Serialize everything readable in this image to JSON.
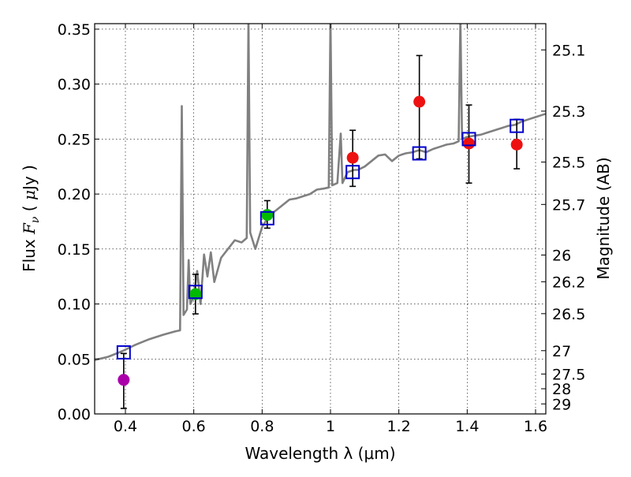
{
  "chart_data": {
    "type": "scatter",
    "xlabel": "Wavelength  λ (μm)",
    "ylabel": "Flux  F_ν  ( μJy )",
    "y2label": "Magnitude (AB)",
    "xlim": [
      0.31,
      1.63
    ],
    "ylim": [
      0.0,
      0.355
    ],
    "grid": true,
    "x_ticks": [
      0.4,
      0.6,
      0.8,
      1.0,
      1.2,
      1.4,
      1.6
    ],
    "x_tick_labels": [
      "0.4",
      "0.6",
      "0.8",
      "1",
      "1.2",
      "1.4",
      "1.6"
    ],
    "y_ticks": [
      0.0,
      0.05,
      0.1,
      0.15,
      0.2,
      0.25,
      0.3,
      0.35
    ],
    "y_tick_labels": [
      "0.00",
      "0.05",
      "0.10",
      "0.15",
      "0.20",
      "0.25",
      "0.30",
      "0.35"
    ],
    "mag_ticks": [
      "25.1",
      "25.3",
      "25.5",
      "25.7",
      "26",
      "26.2",
      "26.5",
      "27",
      "27.5",
      "28",
      "29"
    ],
    "colors": {
      "spectrum": "#808080",
      "model": "#0000cc",
      "violet": "#aa00aa",
      "green": "#00bb00",
      "red": "#ee1111"
    },
    "spectrum": [
      [
        0.31,
        0.049
      ],
      [
        0.35,
        0.052
      ],
      [
        0.39,
        0.057
      ],
      [
        0.43,
        0.063
      ],
      [
        0.47,
        0.068
      ],
      [
        0.51,
        0.072
      ],
      [
        0.545,
        0.075
      ],
      [
        0.56,
        0.076
      ],
      [
        0.565,
        0.28
      ],
      [
        0.57,
        0.09
      ],
      [
        0.58,
        0.095
      ],
      [
        0.585,
        0.14
      ],
      [
        0.59,
        0.1
      ],
      [
        0.6,
        0.107
      ],
      [
        0.61,
        0.13
      ],
      [
        0.62,
        0.1
      ],
      [
        0.63,
        0.145
      ],
      [
        0.64,
        0.125
      ],
      [
        0.65,
        0.147
      ],
      [
        0.66,
        0.12
      ],
      [
        0.68,
        0.142
      ],
      [
        0.7,
        0.15
      ],
      [
        0.72,
        0.158
      ],
      [
        0.74,
        0.156
      ],
      [
        0.755,
        0.16
      ],
      [
        0.76,
        0.36
      ],
      [
        0.765,
        0.165
      ],
      [
        0.78,
        0.15
      ],
      [
        0.8,
        0.17
      ],
      [
        0.82,
        0.18
      ],
      [
        0.84,
        0.185
      ],
      [
        0.86,
        0.19
      ],
      [
        0.88,
        0.195
      ],
      [
        0.9,
        0.196
      ],
      [
        0.92,
        0.198
      ],
      [
        0.94,
        0.2
      ],
      [
        0.96,
        0.204
      ],
      [
        0.98,
        0.205
      ],
      [
        0.995,
        0.206
      ],
      [
        1.0,
        0.36
      ],
      [
        1.005,
        0.208
      ],
      [
        1.02,
        0.21
      ],
      [
        1.03,
        0.255
      ],
      [
        1.035,
        0.21
      ],
      [
        1.05,
        0.22
      ],
      [
        1.07,
        0.222
      ],
      [
        1.08,
        0.222
      ],
      [
        1.1,
        0.225
      ],
      [
        1.12,
        0.23
      ],
      [
        1.14,
        0.235
      ],
      [
        1.16,
        0.236
      ],
      [
        1.18,
        0.23
      ],
      [
        1.2,
        0.235
      ],
      [
        1.22,
        0.237
      ],
      [
        1.24,
        0.238
      ],
      [
        1.26,
        0.24
      ],
      [
        1.28,
        0.238
      ],
      [
        1.3,
        0.241
      ],
      [
        1.32,
        0.243
      ],
      [
        1.34,
        0.245
      ],
      [
        1.36,
        0.246
      ],
      [
        1.375,
        0.248
      ],
      [
        1.38,
        0.36
      ],
      [
        1.385,
        0.25
      ],
      [
        1.4,
        0.252
      ],
      [
        1.42,
        0.253
      ],
      [
        1.44,
        0.254
      ],
      [
        1.46,
        0.256
      ],
      [
        1.48,
        0.258
      ],
      [
        1.5,
        0.26
      ],
      [
        1.52,
        0.262
      ],
      [
        1.54,
        0.263
      ],
      [
        1.56,
        0.266
      ],
      [
        1.58,
        0.268
      ],
      [
        1.6,
        0.27
      ],
      [
        1.62,
        0.272
      ],
      [
        1.63,
        0.273
      ]
    ],
    "model_points": [
      {
        "x": 0.395,
        "y": 0.056
      },
      {
        "x": 0.605,
        "y": 0.111
      },
      {
        "x": 0.815,
        "y": 0.178
      },
      {
        "x": 1.065,
        "y": 0.22
      },
      {
        "x": 1.26,
        "y": 0.237
      },
      {
        "x": 1.405,
        "y": 0.25
      },
      {
        "x": 1.545,
        "y": 0.262
      }
    ],
    "observed_points": [
      {
        "x": 0.395,
        "y": 0.031,
        "err_lo": 0.005,
        "err_hi": 0.055,
        "color": "violet"
      },
      {
        "x": 0.605,
        "y": 0.109,
        "err_lo": 0.091,
        "err_hi": 0.127,
        "color": "green"
      },
      {
        "x": 0.815,
        "y": 0.181,
        "err_lo": 0.169,
        "err_hi": 0.194,
        "color": "green"
      },
      {
        "x": 1.065,
        "y": 0.233,
        "err_lo": 0.207,
        "err_hi": 0.258,
        "color": "red"
      },
      {
        "x": 1.26,
        "y": 0.284,
        "err_lo": 0.232,
        "err_hi": 0.326,
        "color": "red"
      },
      {
        "x": 1.405,
        "y": 0.246,
        "err_lo": 0.21,
        "err_hi": 0.281,
        "color": "red"
      },
      {
        "x": 1.545,
        "y": 0.245,
        "err_lo": 0.223,
        "err_hi": 0.268,
        "color": "red"
      }
    ]
  }
}
